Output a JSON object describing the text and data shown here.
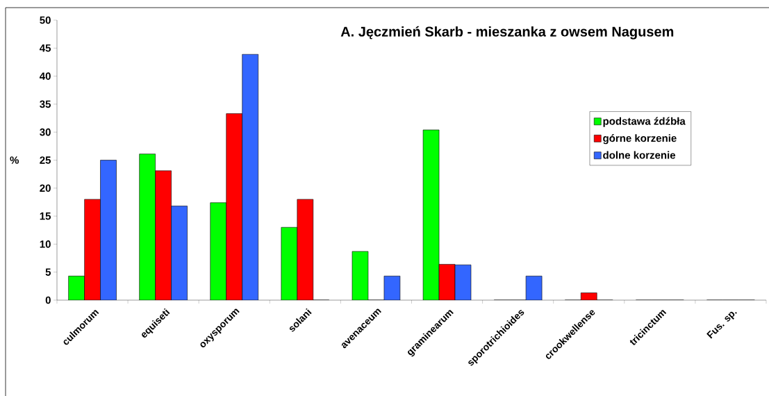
{
  "chart_data": {
    "type": "bar",
    "title": "A. Jęczmień Skarb - mieszanka z owsem Nagusem",
    "ylabel": "%",
    "categories": [
      "culmorum",
      "equiseti",
      "oxysporum",
      "solani",
      "avenaceum",
      "graminearum",
      "sporotrichioides",
      "crookwellense",
      "tricinctum",
      "Fus. sp."
    ],
    "series": [
      {
        "name": "podstawa  źdźbła",
        "color": "#00ff00",
        "values": [
          4.3,
          26.1,
          17.4,
          13.0,
          8.7,
          30.4,
          0,
          0,
          0,
          0
        ]
      },
      {
        "name": "górne  korzenie",
        "color": "#ff0000",
        "values": [
          18.0,
          23.1,
          33.3,
          18.0,
          0,
          6.4,
          0,
          1.3,
          0,
          0
        ]
      },
      {
        "name": "dolne  korzenie",
        "color": "#3366ff",
        "values": [
          25.0,
          16.8,
          43.9,
          0,
          4.3,
          6.3,
          4.3,
          0,
          0,
          0
        ]
      }
    ],
    "ylim": [
      0,
      50
    ],
    "yticks": [
      0,
      5,
      10,
      15,
      20,
      25,
      30,
      35,
      40,
      45,
      50
    ],
    "legend": "right",
    "grid": false
  }
}
